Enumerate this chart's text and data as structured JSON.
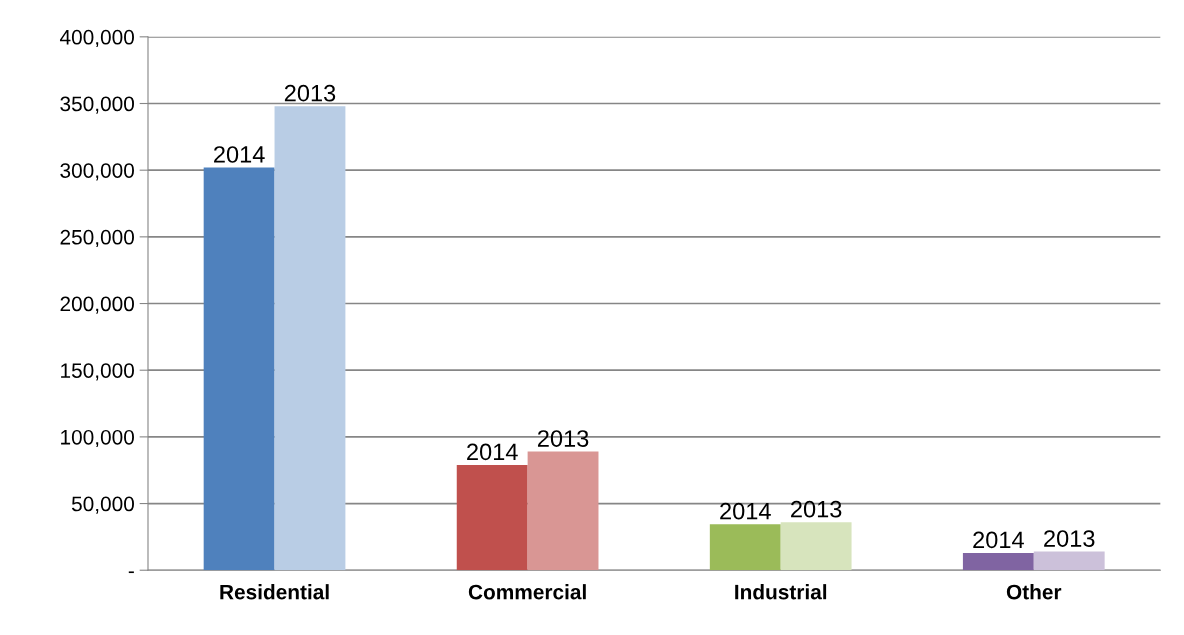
{
  "chart_data": {
    "type": "bar",
    "categories": [
      "Residential",
      "Commercial",
      "Industrial",
      "Other"
    ],
    "series": [
      {
        "name": "2014",
        "colors": [
          "#4f81bd",
          "#c0504d",
          "#9bbb59",
          "#8064a2"
        ],
        "values": [
          302000,
          79000,
          34500,
          13000
        ]
      },
      {
        "name": "2013",
        "colors": [
          "#b9cde5",
          "#d99694",
          "#d7e4bd",
          "#ccc1da"
        ],
        "values": [
          348000,
          89000,
          36000,
          14000
        ]
      }
    ],
    "ylim": [
      0,
      400000
    ],
    "yticks": [
      {
        "value": 0,
        "label": "-"
      },
      {
        "value": 50000,
        "label": "50,000"
      },
      {
        "value": 100000,
        "label": "100,000"
      },
      {
        "value": 150000,
        "label": "150,000"
      },
      {
        "value": 200000,
        "label": "200,000"
      },
      {
        "value": 250000,
        "label": "250,000"
      },
      {
        "value": 300000,
        "label": "300,000"
      },
      {
        "value": 350000,
        "label": "350,000"
      },
      {
        "value": 400000,
        "label": "400,000"
      }
    ],
    "grid": "y",
    "legend": false
  }
}
